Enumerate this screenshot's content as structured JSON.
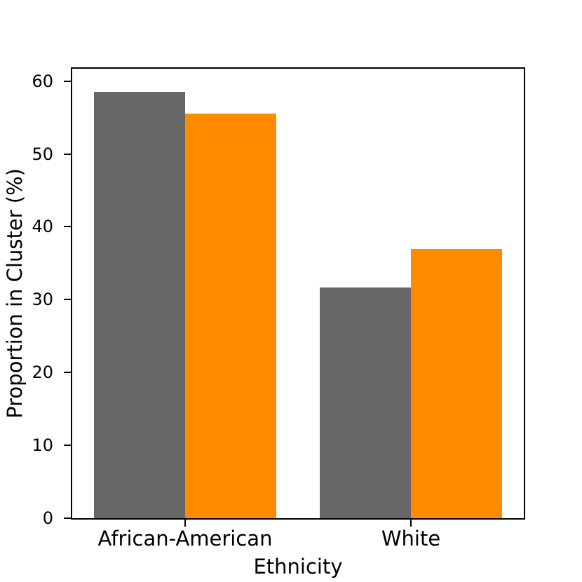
{
  "figure": {
    "background": "#ffffff",
    "text_color": "#000000"
  },
  "chart_data": {
    "type": "bar",
    "title": "",
    "xlabel": "Ethnicity",
    "ylabel": "Proportion in Cluster (%)",
    "categories": [
      "African-American",
      "White"
    ],
    "series": [
      {
        "name": "gray",
        "color": "#676767",
        "values": [
          58.5,
          31.7
        ]
      },
      {
        "name": "orange",
        "color": "#FF8C00",
        "values": [
          55.5,
          37.0
        ]
      }
    ],
    "ylim": [
      0,
      61.7
    ],
    "yticks": [
      0,
      10,
      20,
      30,
      40,
      50,
      60
    ],
    "grid": false,
    "legend": "none",
    "bar_edges_touch_at_category_center": true
  }
}
